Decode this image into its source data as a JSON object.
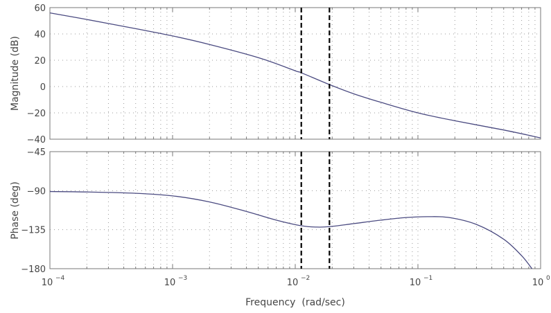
{
  "chart_data": [
    {
      "type": "line",
      "panel": "magnitude",
      "ylabel": "Magnitude (dB)",
      "xscale": "log",
      "xlim": [
        0.0001,
        1
      ],
      "ylim": [
        -40,
        60
      ],
      "yticks": [
        60,
        40,
        20,
        0,
        -20,
        -40
      ],
      "ytick_labels": [
        "60",
        "40",
        "20",
        "0",
        "−20",
        "−40"
      ],
      "grid": "dotted",
      "series": [
        {
          "name": "magnitude",
          "color": "#4a4a80",
          "x": [
            0.0001,
            0.0002,
            0.0005,
            0.001,
            0.002,
            0.005,
            0.01,
            0.0112,
            0.019,
            0.03,
            0.05,
            0.1,
            0.2,
            0.5,
            1
          ],
          "y": [
            56,
            51,
            44,
            38.5,
            32,
            22,
            12,
            10.5,
            1.5,
            -5.5,
            -12,
            -20,
            -26,
            -33,
            -39
          ]
        }
      ],
      "vlines": [
        0.0112,
        0.019
      ]
    },
    {
      "type": "line",
      "panel": "phase",
      "ylabel": "Phase (deg)",
      "xlabel": "Frequency  (rad/sec)",
      "xscale": "log",
      "xlim": [
        0.0001,
        1
      ],
      "ylim": [
        -180,
        -45
      ],
      "yticks": [
        -45,
        -90,
        -135,
        -180
      ],
      "ytick_labels": [
        "−45",
        "−90",
        "−135",
        "−180"
      ],
      "xticks": [
        0.0001,
        0.001,
        0.01,
        0.1,
        1
      ],
      "xtick_labels": [
        {
          "base": "10",
          "exp": "−4"
        },
        {
          "base": "10",
          "exp": "−3"
        },
        {
          "base": "10",
          "exp": "−2"
        },
        {
          "base": "10",
          "exp": "−1"
        },
        {
          "base": "10",
          "exp": "0"
        }
      ],
      "grid": "dotted",
      "series": [
        {
          "name": "phase",
          "color": "#4a4a80",
          "x": [
            0.0001,
            0.0002,
            0.0005,
            0.001,
            0.002,
            0.004,
            0.007,
            0.0112,
            0.015,
            0.019,
            0.03,
            0.05,
            0.08,
            0.12,
            0.18,
            0.3,
            0.5,
            0.7,
            0.85
          ],
          "y": [
            -91,
            -91.5,
            -93,
            -96,
            -103,
            -114,
            -124,
            -130.5,
            -132,
            -131.5,
            -128,
            -124,
            -121,
            -120,
            -121,
            -129,
            -146,
            -165,
            -180
          ]
        }
      ],
      "vlines": [
        0.0112,
        0.019
      ]
    }
  ]
}
